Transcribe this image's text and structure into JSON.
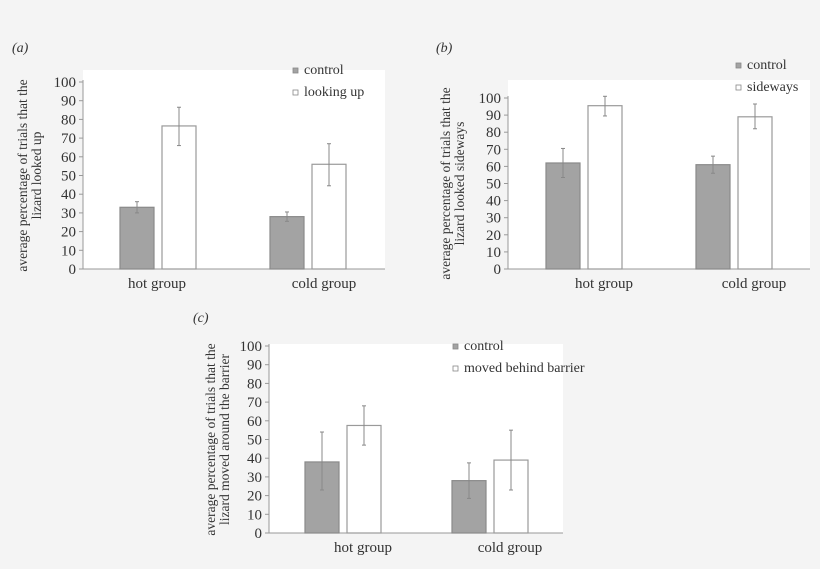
{
  "chart_data": [
    {
      "type": "bar",
      "panel_label": "(a)",
      "ylabel_lines": [
        "average percentage of trials that the",
        "lizard looked up"
      ],
      "categories": [
        "hot group",
        "cold group"
      ],
      "ylim": [
        0,
        100
      ],
      "yticks": [
        0,
        10,
        20,
        30,
        40,
        50,
        60,
        70,
        80,
        90,
        100
      ],
      "grid": false,
      "legend_placement": "top-right",
      "series": [
        {
          "name": "control",
          "color": "#a3a3a3",
          "values": [
            33,
            28
          ],
          "error_low": [
            30,
            25.5
          ],
          "error_high": [
            36,
            30.5
          ]
        },
        {
          "name": "looking up",
          "color": "#ffffff",
          "values": [
            76.5,
            56
          ],
          "error_low": [
            66,
            44.5
          ],
          "error_high": [
            86.5,
            67
          ]
        }
      ]
    },
    {
      "type": "bar",
      "panel_label": "(b)",
      "ylabel_lines": [
        "average percentage of trials that the",
        "lizard looked sideways"
      ],
      "categories": [
        "hot group",
        "cold group"
      ],
      "ylim": [
        0,
        100
      ],
      "yticks": [
        0,
        10,
        20,
        30,
        40,
        50,
        60,
        70,
        80,
        90,
        100
      ],
      "grid": false,
      "legend_placement": "top-right",
      "series": [
        {
          "name": "control",
          "color": "#a3a3a3",
          "values": [
            62,
            61
          ],
          "error_low": [
            53.5,
            56
          ],
          "error_high": [
            70.5,
            66
          ]
        },
        {
          "name": "sideways",
          "color": "#ffffff",
          "values": [
            95.5,
            89
          ],
          "error_low": [
            89.5,
            82
          ],
          "error_high": [
            101,
            96.5
          ]
        }
      ]
    },
    {
      "type": "bar",
      "panel_label": "(c)",
      "ylabel_lines": [
        "average percentage of trials that the",
        "lizard moved around the barrier"
      ],
      "categories": [
        "hot group",
        "cold group"
      ],
      "ylim": [
        0,
        100
      ],
      "yticks": [
        0,
        10,
        20,
        30,
        40,
        50,
        60,
        70,
        80,
        90,
        100
      ],
      "grid": false,
      "legend_placement": "top-right",
      "series": [
        {
          "name": "control",
          "color": "#a3a3a3",
          "values": [
            38,
            28
          ],
          "error_low": [
            23,
            18.5
          ],
          "error_high": [
            54,
            37.5
          ]
        },
        {
          "name": "moved behind barrier",
          "color": "#ffffff",
          "values": [
            57.5,
            39
          ],
          "error_low": [
            47,
            23
          ],
          "error_high": [
            68,
            55
          ]
        }
      ]
    }
  ]
}
